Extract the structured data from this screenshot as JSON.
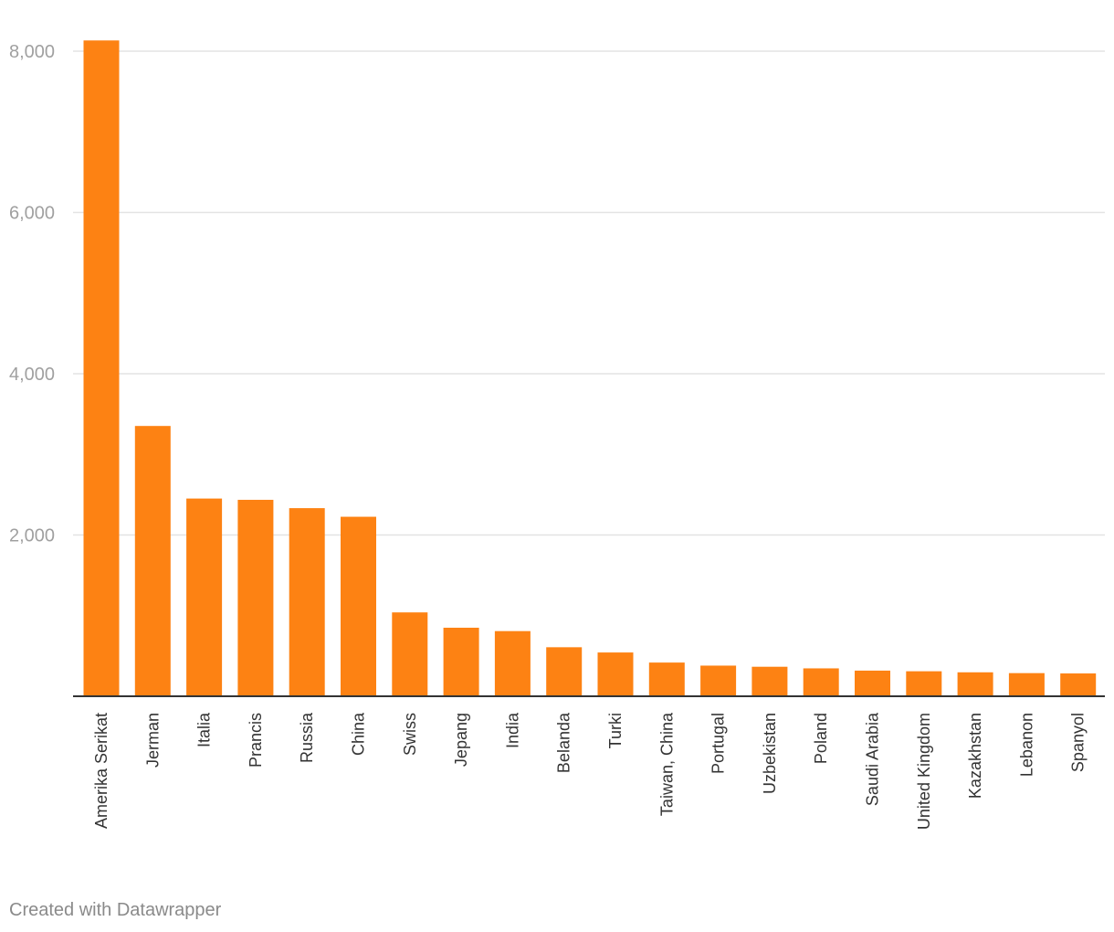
{
  "chart_data": {
    "type": "bar",
    "orientation": "vertical",
    "categories": [
      "Amerika Serikat",
      "Jerman",
      "Italia",
      "Prancis",
      "Russia",
      "China",
      "Swiss",
      "Jepang",
      "India",
      "Belanda",
      "Turki",
      "Taiwan, China",
      "Portugal",
      "Uzbekistan",
      "Poland",
      "Saudi Arabia",
      "United Kingdom",
      "Kazakhstan",
      "Lebanon",
      "Spanyol"
    ],
    "values": [
      8133,
      3352,
      2452,
      2436,
      2333,
      2226,
      1040,
      850,
      808,
      608,
      543,
      418,
      380,
      366,
      346,
      318,
      310,
      297,
      287,
      283
    ],
    "yticks": [
      2000,
      4000,
      6000,
      8000
    ],
    "ytick_labels": [
      "2,000",
      "4,000",
      "6,000",
      "8,000"
    ],
    "ylim": [
      0,
      8000
    ],
    "grid": true,
    "bar_color": "#fd8213",
    "title": "",
    "xlabel": "",
    "ylabel": ""
  },
  "footer": {
    "credit": "Created with Datawrapper"
  }
}
